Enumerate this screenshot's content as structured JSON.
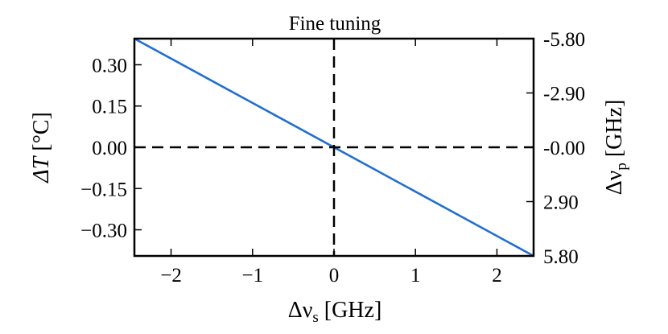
{
  "chart_data": {
    "type": "line",
    "title": "Fine tuning",
    "xlabel": {
      "main": "Δν",
      "sub": "s",
      "unit": " [GHz]"
    },
    "ylabel_left": {
      "main": "ΔT",
      "unit": " [°C]"
    },
    "ylabel_right": {
      "main": "Δν",
      "sub": "p",
      "unit": " [GHz]"
    },
    "xlim": [
      -2.45,
      2.45
    ],
    "ylim": [
      -0.395,
      0.395
    ],
    "x_ticks": [
      {
        "value": -2,
        "label": "−2"
      },
      {
        "value": -1,
        "label": "−1"
      },
      {
        "value": 0,
        "label": "0"
      },
      {
        "value": 1,
        "label": "1"
      },
      {
        "value": 2,
        "label": "2"
      }
    ],
    "y_ticks_left": [
      {
        "value": 0.3,
        "label": "0.30"
      },
      {
        "value": 0.15,
        "label": "0.15"
      },
      {
        "value": 0.0,
        "label": "0.00"
      },
      {
        "value": -0.15,
        "label": "−0.15"
      },
      {
        "value": -0.3,
        "label": "−0.30"
      }
    ],
    "y_ticks_right": [
      {
        "value": 0.395,
        "label": "-5.80"
      },
      {
        "value": 0.1975,
        "label": "-2.90"
      },
      {
        "value": 0.0,
        "label": "-0.00"
      },
      {
        "value": -0.1975,
        "label": "2.90"
      },
      {
        "value": -0.395,
        "label": "5.80"
      }
    ],
    "series": [
      {
        "color": "#1f6fd1",
        "x": [
          -2.45,
          2.45
        ],
        "y": [
          0.395,
          -0.395
        ]
      }
    ],
    "reference_lines": [
      {
        "orientation": "vertical",
        "x": 0,
        "style": "dashed"
      },
      {
        "orientation": "horizontal",
        "y": 0,
        "style": "dashed"
      }
    ],
    "grid": false,
    "legend": "none"
  }
}
